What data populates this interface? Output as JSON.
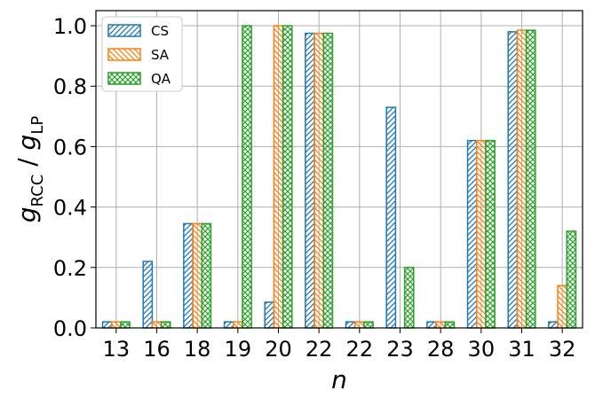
{
  "chart_data": {
    "type": "bar",
    "xlabel": "n",
    "ylabel_main": "g",
    "ylabel_sub1": "RCC",
    "ylabel_sep": " / ",
    "ylabel_main2": "g",
    "ylabel_sub2": "LP",
    "categories": [
      "13",
      "16",
      "18",
      "19",
      "20",
      "22",
      "22",
      "23",
      "28",
      "30",
      "31",
      "32"
    ],
    "ylim": [
      0,
      1.05
    ],
    "yticks": [
      "0.0",
      "0.2",
      "0.4",
      "0.6",
      "0.8",
      "1.0"
    ],
    "grid": true,
    "legend_position": "top-left",
    "series": [
      {
        "name": "CS",
        "color": "#1f77b4",
        "hatch": "diagonal-up",
        "values": [
          0.02,
          0.22,
          0.345,
          0.02,
          0.085,
          0.975,
          0.02,
          0.73,
          0.02,
          0.62,
          0.98,
          0.02
        ]
      },
      {
        "name": "SA",
        "color": "#ff7f0e",
        "hatch": "diagonal-down",
        "values": [
          0.02,
          0.02,
          0.345,
          0.02,
          1.0,
          0.975,
          0.02,
          0.0,
          0.02,
          0.62,
          0.985,
          0.14
        ]
      },
      {
        "name": "QA",
        "color": "#2ca02c",
        "hatch": "crosshatch",
        "values": [
          0.02,
          0.02,
          0.345,
          1.0,
          1.0,
          0.975,
          0.02,
          0.2,
          0.02,
          0.62,
          0.985,
          0.32
        ]
      }
    ]
  }
}
